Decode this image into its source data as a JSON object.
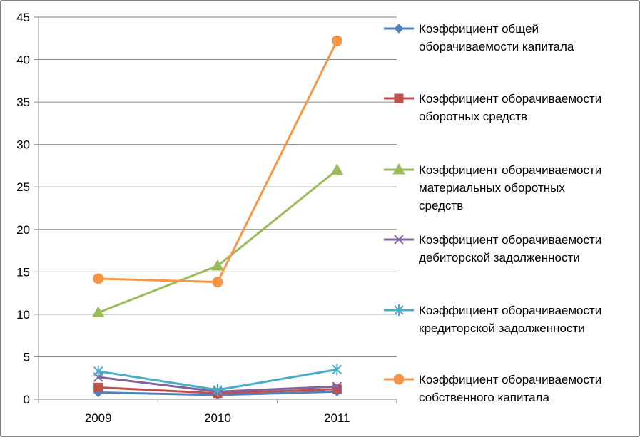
{
  "chart_data": {
    "type": "line",
    "title": "",
    "xlabel": "",
    "ylabel": "",
    "categories": [
      "2009",
      "2010",
      "2011"
    ],
    "ylim": [
      0,
      45
    ],
    "yticks": [
      "0",
      "5",
      "10",
      "15",
      "20",
      "25",
      "30",
      "35",
      "40",
      "45"
    ],
    "grid": "horizontal",
    "legend_position": "right",
    "series": [
      {
        "name_lines": [
          "Коэффициент общей",
          "оборачиваемости капитала"
        ],
        "color": "#4f81bd",
        "marker": "diamond",
        "values": [
          0.8,
          0.5,
          0.9
        ]
      },
      {
        "name_lines": [
          "Коэффициент оборачиваемости",
          "оборотных средств"
        ],
        "color": "#c0504d",
        "marker": "square",
        "values": [
          1.4,
          0.7,
          1.2
        ]
      },
      {
        "name_lines": [
          "Коэффициент оборачиваемости",
          "материальных оборотных",
          "средств"
        ],
        "color": "#9bbb59",
        "marker": "triangle",
        "values": [
          10.2,
          15.7,
          27.0
        ]
      },
      {
        "name_lines": [
          "Коэффициент оборачиваемости",
          "дебиторской задолженности"
        ],
        "color": "#8064a2",
        "marker": "x",
        "values": [
          2.6,
          0.9,
          1.5
        ]
      },
      {
        "name_lines": [
          "Коэффициент оборачиваемости",
          "кредиторской задолженности"
        ],
        "color": "#4bacc6",
        "marker": "star",
        "values": [
          3.3,
          1.1,
          3.5
        ]
      },
      {
        "name_lines": [
          "Коэффициент оборачиваемости",
          "собственного капитала"
        ],
        "color": "#f79646",
        "marker": "circle",
        "values": [
          14.2,
          13.8,
          42.2
        ]
      }
    ]
  }
}
